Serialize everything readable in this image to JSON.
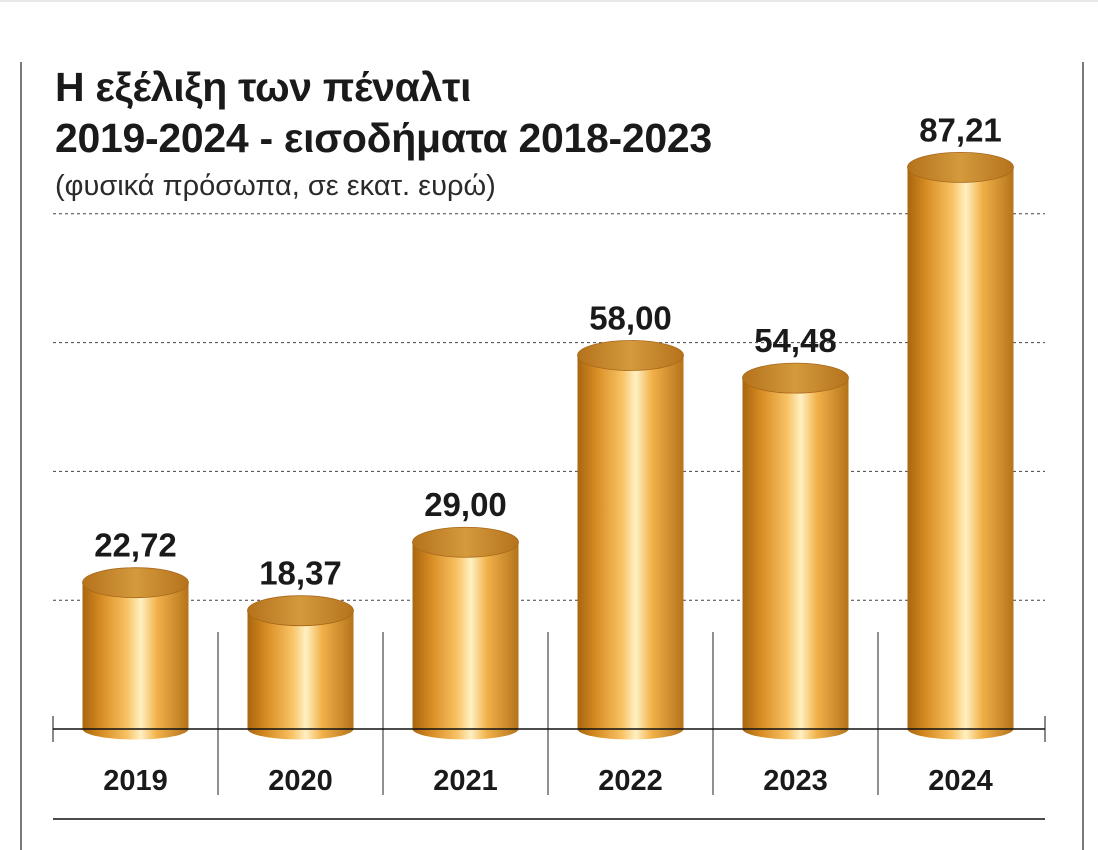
{
  "chart_data": {
    "type": "bar",
    "title_line1": "Η εξέλιξη των πέναλτι",
    "title_line2": "2019-2024 - εισοδήματα 2018-2023",
    "subtitle": "(φυσικά πρόσωπα, σε εκατ. ευρώ)",
    "categories": [
      "2019",
      "2020",
      "2021",
      "2022",
      "2023",
      "2024"
    ],
    "values": [
      22.72,
      18.37,
      29.0,
      58.0,
      54.48,
      87.21
    ],
    "value_labels": [
      "22,72",
      "18,37",
      "29,00",
      "58,00",
      "54,48",
      "87,21"
    ],
    "ylim": [
      0,
      100
    ],
    "grid": true,
    "colors": {
      "bar_dark": "#a8660f",
      "bar_mid": "#f0a93a",
      "bar_light": "#fff0c2",
      "top": "#c88a2c",
      "text": "#1a1a1a",
      "grid": "#444444"
    }
  }
}
